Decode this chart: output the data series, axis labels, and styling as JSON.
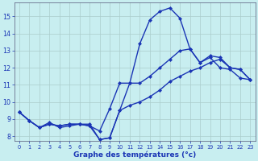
{
  "xlabel": "Graphe des températures (°c)",
  "background_color": "#c8eef0",
  "grid_color": "#aacccc",
  "line_color": "#1a35b5",
  "hours": [
    0,
    1,
    2,
    3,
    4,
    5,
    6,
    7,
    8,
    9,
    10,
    11,
    12,
    13,
    14,
    15,
    16,
    17,
    18,
    19,
    20,
    21,
    22,
    23
  ],
  "series1": [
    9.4,
    8.9,
    8.5,
    8.8,
    8.5,
    8.6,
    8.7,
    8.6,
    8.3,
    9.6,
    11.1,
    11.1,
    13.4,
    14.8,
    15.3,
    15.5,
    14.9,
    13.1,
    12.3,
    12.6,
    12.0,
    11.9,
    11.4,
    11.3
  ],
  "series2": [
    9.4,
    8.9,
    8.5,
    8.7,
    8.6,
    8.7,
    8.7,
    8.7,
    7.8,
    7.9,
    9.5,
    9.8,
    10.0,
    10.3,
    10.7,
    11.2,
    11.5,
    11.8,
    12.0,
    12.3,
    12.5,
    12.0,
    11.9,
    11.3
  ],
  "series3": [
    9.4,
    8.9,
    8.5,
    8.7,
    8.6,
    8.7,
    8.7,
    8.6,
    7.8,
    7.9,
    9.5,
    11.1,
    11.1,
    11.5,
    12.0,
    12.5,
    13.0,
    13.1,
    12.3,
    12.7,
    12.6,
    12.0,
    11.9,
    11.3
  ],
  "ylim_min": 7.7,
  "ylim_max": 15.8,
  "yticks": [
    8,
    9,
    10,
    11,
    12,
    13,
    14,
    15
  ],
  "xticks": [
    0,
    1,
    2,
    3,
    4,
    5,
    6,
    7,
    8,
    9,
    10,
    11,
    12,
    13,
    14,
    15,
    16,
    17,
    18,
    19,
    20,
    21,
    22,
    23
  ],
  "marker": "D",
  "marker_size": 2.0,
  "line_width": 1.0
}
